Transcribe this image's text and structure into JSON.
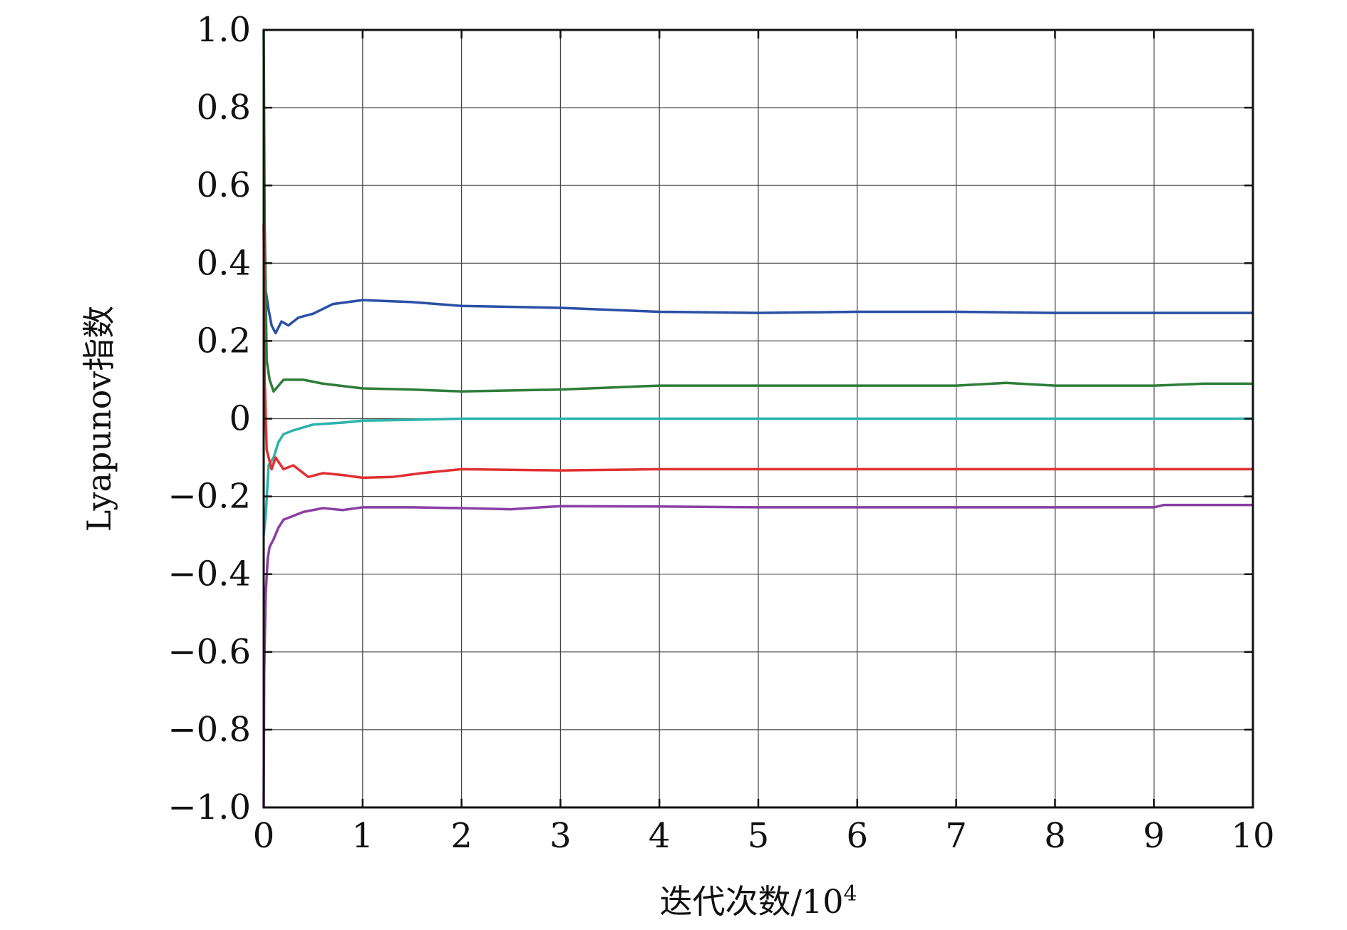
{
  "chart_data": {
    "type": "line",
    "title": "",
    "xlabel": "迭代次数/10",
    "xlabel_exponent": "4",
    "ylabel": "Lyapunov指数",
    "xlim": [
      0,
      10
    ],
    "ylim": [
      -1.0,
      1.0
    ],
    "grid": true,
    "legend": "none",
    "x_tick_labels": [
      "0",
      "1",
      "2",
      "3",
      "4",
      "5",
      "6",
      "7",
      "8",
      "9",
      "10"
    ],
    "y_tick_labels": [
      "−1.0",
      "−0.8",
      "−0.6",
      "−0.4",
      "−0.2",
      "0",
      "0.2",
      "0.4",
      "0.6",
      "0.8",
      "1.0"
    ],
    "x_ticks": [
      0,
      1,
      2,
      3,
      4,
      5,
      6,
      7,
      8,
      9,
      10
    ],
    "y_ticks": [
      -1.0,
      -0.8,
      -0.6,
      -0.4,
      -0.2,
      0,
      0.2,
      0.4,
      0.6,
      0.8,
      1.0
    ],
    "series": [
      {
        "color": "#2b4fa6",
        "x": [
          0,
          0.02,
          0.05,
          0.08,
          0.12,
          0.18,
          0.25,
          0.35,
          0.5,
          0.7,
          1.0,
          1.5,
          2.0,
          3.0,
          4.0,
          5.0,
          6.0,
          7.0,
          8.0,
          9.0,
          10.0
        ],
        "y": [
          0.5,
          0.33,
          0.28,
          0.24,
          0.22,
          0.25,
          0.24,
          0.26,
          0.27,
          0.295,
          0.305,
          0.3,
          0.29,
          0.285,
          0.275,
          0.272,
          0.275,
          0.275,
          0.272,
          0.272,
          0.272
        ]
      },
      {
        "color": "#2e7d3a",
        "x": [
          0,
          0.01,
          0.03,
          0.06,
          0.1,
          0.2,
          0.4,
          0.6,
          1.0,
          1.5,
          2.0,
          3.0,
          4.0,
          5.0,
          6.0,
          7.0,
          7.5,
          8.0,
          9.0,
          9.5,
          10.0
        ],
        "y": [
          1.0,
          0.5,
          0.15,
          0.1,
          0.07,
          0.1,
          0.1,
          0.09,
          0.078,
          0.075,
          0.07,
          0.075,
          0.085,
          0.085,
          0.085,
          0.085,
          0.092,
          0.085,
          0.085,
          0.09,
          0.09
        ]
      },
      {
        "color": "#2ab3ad",
        "x": [
          0,
          0.02,
          0.05,
          0.1,
          0.15,
          0.2,
          0.3,
          0.5,
          0.8,
          1.0,
          1.5,
          2.0,
          3.0,
          4.0,
          5.0,
          6.0,
          7.0,
          8.0,
          9.0,
          10.0
        ],
        "y": [
          -0.3,
          -0.25,
          -0.12,
          -0.1,
          -0.06,
          -0.04,
          -0.03,
          -0.015,
          -0.01,
          -0.005,
          -0.003,
          0.0,
          0.0,
          0.0,
          0.0,
          0.0,
          0.0,
          0.0,
          0.0,
          0.0
        ]
      },
      {
        "color": "#e03030",
        "x": [
          0,
          0.01,
          0.03,
          0.08,
          0.12,
          0.2,
          0.3,
          0.45,
          0.6,
          0.8,
          1.0,
          1.3,
          1.6,
          2.0,
          3.0,
          4.0,
          5.0,
          6.0,
          7.0,
          8.0,
          9.0,
          10.0
        ],
        "y": [
          0.5,
          0.1,
          -0.08,
          -0.13,
          -0.1,
          -0.13,
          -0.12,
          -0.15,
          -0.14,
          -0.145,
          -0.152,
          -0.15,
          -0.14,
          -0.13,
          -0.133,
          -0.13,
          -0.13,
          -0.13,
          -0.13,
          -0.13,
          -0.13,
          -0.13
        ]
      },
      {
        "color": "#8a3fa3",
        "x": [
          0,
          0.005,
          0.02,
          0.04,
          0.06,
          0.1,
          0.15,
          0.2,
          0.3,
          0.4,
          0.6,
          0.8,
          1.0,
          1.5,
          2.0,
          2.5,
          3.0,
          4.0,
          5.0,
          6.0,
          7.0,
          8.0,
          9.0,
          9.1,
          10.0
        ],
        "y": [
          -1.0,
          -0.65,
          -0.45,
          -0.36,
          -0.33,
          -0.31,
          -0.28,
          -0.26,
          -0.25,
          -0.24,
          -0.23,
          -0.235,
          -0.228,
          -0.228,
          -0.23,
          -0.233,
          -0.225,
          -0.226,
          -0.228,
          -0.228,
          -0.228,
          -0.228,
          -0.228,
          -0.222,
          -0.222
        ]
      }
    ]
  }
}
